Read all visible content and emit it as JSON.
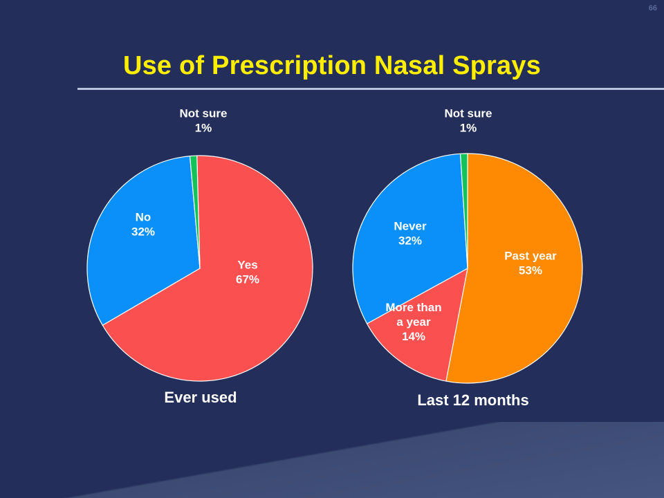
{
  "slide_number": "66",
  "title": "Use of Prescription Nasal Sprays",
  "colors": {
    "background": "#232f5a",
    "title": "#ffee00",
    "red": "#fb5050",
    "blue": "#0a90f8",
    "green": "#14c25a",
    "orange": "#fd8a02",
    "label": "#ffffff"
  },
  "chart_data": [
    {
      "type": "pie",
      "caption": "Ever used",
      "slices": [
        {
          "name": "Yes",
          "value": 67,
          "label": [
            "Yes",
            "67%"
          ],
          "color": "#fb5050"
        },
        {
          "name": "No",
          "value": 32,
          "label": [
            "No",
            "32%"
          ],
          "color": "#0a90f8"
        },
        {
          "name": "Not sure",
          "value": 1,
          "label": [
            "Not sure",
            "1%"
          ],
          "color": "#14c25a"
        }
      ]
    },
    {
      "type": "pie",
      "caption": "Last 12 months",
      "slices": [
        {
          "name": "Past year",
          "value": 53,
          "label": [
            "Past year",
            "53%"
          ],
          "color": "#fd8a02"
        },
        {
          "name": "More than a year",
          "value": 14,
          "label": [
            "More than",
            "a year",
            "14%"
          ],
          "color": "#fb5050"
        },
        {
          "name": "Never",
          "value": 32,
          "label": [
            "Never",
            "32%"
          ],
          "color": "#0a90f8"
        },
        {
          "name": "Not sure",
          "value": 1,
          "label": [
            "Not sure",
            "1%"
          ],
          "color": "#14c25a"
        }
      ]
    }
  ]
}
